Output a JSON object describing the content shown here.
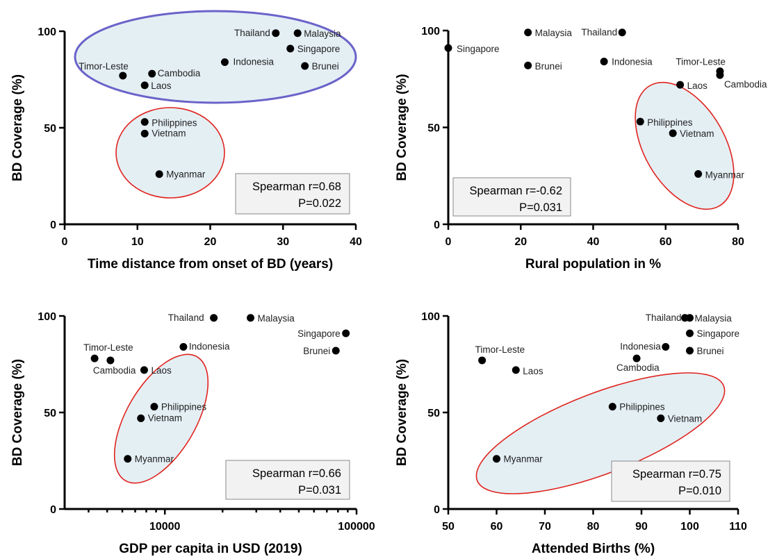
{
  "chart_data": [
    {
      "type": "scatter",
      "xlabel": "Time distance from onset of BD (years)",
      "ylabel": "BD Coverage (%)",
      "xlim": [
        0,
        40
      ],
      "ylim": [
        0,
        100
      ],
      "x_scale": "linear",
      "x_ticks": [
        0,
        10,
        20,
        30,
        40
      ],
      "x_tick_labels": [
        "0",
        "10",
        "20",
        "30",
        "40"
      ],
      "y_ticks": [
        0,
        50,
        100
      ],
      "y_tick_labels": [
        "0",
        "50",
        "100"
      ],
      "points": [
        {
          "label": "Thailand",
          "x": 29,
          "y": 99
        },
        {
          "label": "Malaysia",
          "x": 32,
          "y": 99
        },
        {
          "label": "Singapore",
          "x": 31,
          "y": 91
        },
        {
          "label": "Indonesia",
          "x": 22,
          "y": 84
        },
        {
          "label": "Brunei",
          "x": 33,
          "y": 82
        },
        {
          "label": "Timor-Leste",
          "x": 8,
          "y": 77
        },
        {
          "label": "Cambodia",
          "x": 12,
          "y": 78
        },
        {
          "label": "Laos",
          "x": 11,
          "y": 72
        },
        {
          "label": "Philippines",
          "x": 11,
          "y": 53
        },
        {
          "label": "Vietnam",
          "x": 11,
          "y": 47
        },
        {
          "label": "Myanmar",
          "x": 13,
          "y": 26
        }
      ],
      "stat_lines": [
        "Spearman r=0.68",
        "P=0.022"
      ],
      "group_colors": {
        "fill": "#e4eff4",
        "ring_red": "#e0231e",
        "ring_blue": "#6b63c9"
      }
    },
    {
      "type": "scatter",
      "xlabel": "Rural population in %",
      "ylabel": "BD Coverage (%)",
      "xlim": [
        0,
        80
      ],
      "ylim": [
        0,
        100
      ],
      "x_scale": "linear",
      "x_ticks": [
        0,
        20,
        40,
        60,
        80
      ],
      "x_tick_labels": [
        "0",
        "20",
        "40",
        "60",
        "80"
      ],
      "y_ticks": [
        0,
        50,
        100
      ],
      "y_tick_labels": [
        "0",
        "50",
        "100"
      ],
      "points": [
        {
          "label": "Singapore",
          "x": 0,
          "y": 91
        },
        {
          "label": "Malaysia",
          "x": 22,
          "y": 99
        },
        {
          "label": "Thailand",
          "x": 48,
          "y": 99
        },
        {
          "label": "Brunei",
          "x": 22,
          "y": 82
        },
        {
          "label": "Indonesia",
          "x": 43,
          "y": 84
        },
        {
          "label": "Timor-Leste",
          "x": 75,
          "y": 79
        },
        {
          "label": "Cambodia",
          "x": 75,
          "y": 77
        },
        {
          "label": "Laos",
          "x": 64,
          "y": 72
        },
        {
          "label": "Philippines",
          "x": 53,
          "y": 53
        },
        {
          "label": "Vietnam",
          "x": 62,
          "y": 47
        },
        {
          "label": "Myanmar",
          "x": 69,
          "y": 26
        }
      ],
      "stat_lines": [
        "Spearman r=-0.62",
        "P=0.031"
      ],
      "group_colors": {
        "fill": "#e4eff4",
        "ring_red": "#e0231e"
      }
    },
    {
      "type": "scatter",
      "xlabel": "GDP per capita in USD (2019)",
      "ylabel": "BD Coverage (%)",
      "xlim": [
        3000,
        100000
      ],
      "ylim": [
        0,
        100
      ],
      "x_scale": "log",
      "x_ticks": [
        10000,
        100000
      ],
      "x_tick_labels": [
        "10000",
        "100000"
      ],
      "y_ticks": [
        0,
        50,
        100
      ],
      "y_tick_labels": [
        "0",
        "50",
        "100"
      ],
      "points": [
        {
          "label": "Thailand",
          "x": 18000,
          "y": 99
        },
        {
          "label": "Malaysia",
          "x": 28000,
          "y": 99
        },
        {
          "label": "Singapore",
          "x": 88000,
          "y": 91
        },
        {
          "label": "Brunei",
          "x": 78000,
          "y": 82
        },
        {
          "label": "Indonesia",
          "x": 12500,
          "y": 84
        },
        {
          "label": "Timor-Leste",
          "x": 4300,
          "y": 78
        },
        {
          "label": "Cambodia",
          "x": 5200,
          "y": 77
        },
        {
          "label": "Laos",
          "x": 7800,
          "y": 72
        },
        {
          "label": "Philippines",
          "x": 8800,
          "y": 53
        },
        {
          "label": "Vietnam",
          "x": 7500,
          "y": 47
        },
        {
          "label": "Myanmar",
          "x": 6400,
          "y": 26
        }
      ],
      "stat_lines": [
        "Spearman r=0.66",
        "P=0.031"
      ],
      "group_colors": {
        "fill": "#e4eff4",
        "ring_red": "#e0231e"
      }
    },
    {
      "type": "scatter",
      "xlabel": "Attended Births (%)",
      "ylabel": "BD Coverage (%)",
      "xlim": [
        50,
        110
      ],
      "ylim": [
        0,
        100
      ],
      "x_scale": "linear",
      "x_ticks": [
        50,
        60,
        70,
        80,
        90,
        100,
        110
      ],
      "x_tick_labels": [
        "50",
        "60",
        "70",
        "80",
        "90",
        "100",
        "110"
      ],
      "y_ticks": [
        0,
        50,
        100
      ],
      "y_tick_labels": [
        "0",
        "50",
        "100"
      ],
      "points": [
        {
          "label": "Thailand",
          "x": 99,
          "y": 99
        },
        {
          "label": "Malaysia",
          "x": 100,
          "y": 99
        },
        {
          "label": "Singapore",
          "x": 100,
          "y": 91
        },
        {
          "label": "Indonesia",
          "x": 95,
          "y": 84
        },
        {
          "label": "Brunei",
          "x": 100,
          "y": 82
        },
        {
          "label": "Cambodia",
          "x": 89,
          "y": 78
        },
        {
          "label": "Timor-Leste",
          "x": 57,
          "y": 77
        },
        {
          "label": "Laos",
          "x": 64,
          "y": 72
        },
        {
          "label": "Philippines",
          "x": 84,
          "y": 53
        },
        {
          "label": "Vietnam",
          "x": 94,
          "y": 47
        },
        {
          "label": "Myanmar",
          "x": 60,
          "y": 26
        }
      ],
      "stat_lines": [
        "Spearman r=0.75",
        "P=0.010"
      ],
      "group_colors": {
        "fill": "#e4eff4",
        "ring_red": "#e0231e"
      }
    }
  ]
}
